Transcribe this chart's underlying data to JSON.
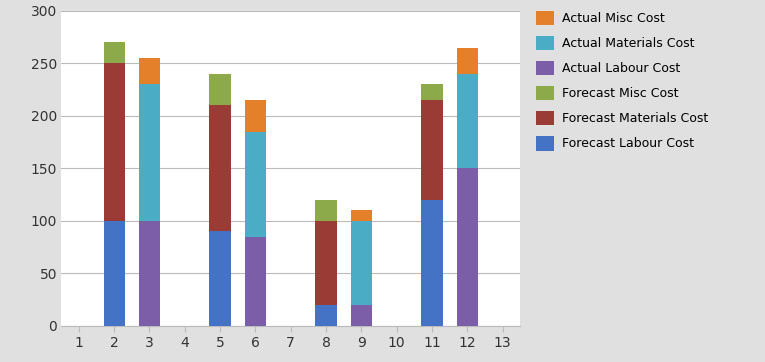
{
  "categories": [
    1,
    2,
    3,
    4,
    5,
    6,
    7,
    8,
    9,
    10,
    11,
    12,
    13
  ],
  "forecast_labour": [
    0,
    100,
    0,
    0,
    90,
    0,
    0,
    20,
    0,
    0,
    120,
    0,
    0
  ],
  "forecast_materials": [
    0,
    150,
    0,
    0,
    120,
    0,
    0,
    80,
    0,
    0,
    95,
    0,
    0
  ],
  "forecast_misc": [
    0,
    20,
    0,
    0,
    30,
    0,
    0,
    20,
    0,
    0,
    15,
    0,
    0
  ],
  "actual_labour": [
    0,
    0,
    100,
    0,
    0,
    85,
    0,
    0,
    20,
    0,
    0,
    150,
    0
  ],
  "actual_materials": [
    0,
    0,
    130,
    0,
    0,
    100,
    0,
    0,
    80,
    0,
    0,
    90,
    0
  ],
  "actual_misc": [
    0,
    0,
    25,
    0,
    0,
    30,
    0,
    0,
    10,
    0,
    0,
    25,
    0
  ],
  "colors": {
    "forecast_labour": "#4472C4",
    "forecast_materials": "#9B3B35",
    "forecast_misc": "#8DAA4A",
    "actual_labour": "#7B5EA7",
    "actual_materials": "#4BACC6",
    "actual_misc": "#E47F2A"
  },
  "legend_labels": [
    "Actual Misc Cost",
    "Actual Materials Cost",
    "Actual Labour Cost",
    "Forecast Misc Cost",
    "Forecast Materials Cost",
    "Forecast Labour Cost"
  ],
  "legend_colors": [
    "#E47F2A",
    "#4BACC6",
    "#7B5EA7",
    "#8DAA4A",
    "#9B3B35",
    "#4472C4"
  ],
  "ylim": [
    0,
    300
  ],
  "yticks": [
    0,
    50,
    100,
    150,
    200,
    250,
    300
  ],
  "xlim": [
    0.5,
    13.5
  ],
  "bar_width": 0.6,
  "bg_color": "#E0E0E0",
  "plot_bg_color": "#FFFFFF"
}
